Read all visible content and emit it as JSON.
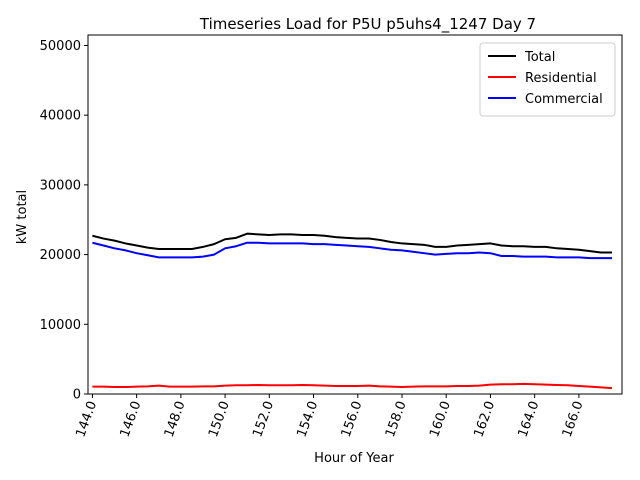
{
  "chart_data": {
    "type": "line",
    "title": "Timeseries Load for P5U p5uhs4_1247  Day 7",
    "xlabel": "Hour of Year",
    "ylabel": "kW total",
    "xlim": [
      143.8,
      167.95
    ],
    "ylim": [
      0,
      51500
    ],
    "xticks": [
      144.0,
      146.0,
      148.0,
      150.0,
      152.0,
      154.0,
      156.0,
      158.0,
      160.0,
      162.0,
      164.0,
      166.0
    ],
    "xtick_labels": [
      "144.0",
      "146.0",
      "148.0",
      "150.0",
      "152.0",
      "154.0",
      "156.0",
      "158.0",
      "160.0",
      "162.0",
      "164.0",
      "166.0"
    ],
    "yticks": [
      0,
      10000,
      20000,
      30000,
      40000,
      50000
    ],
    "ytick_labels": [
      "0",
      "10000",
      "20000",
      "30000",
      "40000",
      "50000"
    ],
    "legend_position": "top-right",
    "x": [
      144.0,
      144.5,
      145.0,
      145.5,
      146.0,
      146.5,
      147.0,
      147.5,
      148.0,
      148.5,
      149.0,
      149.5,
      150.0,
      150.5,
      151.0,
      151.5,
      152.0,
      152.5,
      153.0,
      153.5,
      154.0,
      154.5,
      155.0,
      155.5,
      156.0,
      156.5,
      157.0,
      157.5,
      158.0,
      158.5,
      159.0,
      159.5,
      160.0,
      160.5,
      161.0,
      161.5,
      162.0,
      162.5,
      163.0,
      163.5,
      164.0,
      164.5,
      165.0,
      165.5,
      166.0,
      166.5,
      167.0,
      167.5
    ],
    "series": [
      {
        "name": "Total",
        "color": "#000000",
        "values": [
          22700,
          22300,
          22000,
          21600,
          21300,
          21000,
          20800,
          20800,
          20800,
          20800,
          21100,
          21500,
          22200,
          22400,
          23000,
          22900,
          22800,
          22900,
          22900,
          22800,
          22800,
          22700,
          22500,
          22400,
          22300,
          22300,
          22100,
          21800,
          21600,
          21500,
          21400,
          21100,
          21100,
          21300,
          21400,
          21500,
          21600,
          21300,
          21200,
          21200,
          21100,
          21100,
          20900,
          20800,
          20700,
          20500,
          20300,
          20300
        ]
      },
      {
        "name": "Residential",
        "color": "#ff0000",
        "values": [
          1050,
          1050,
          1000,
          1000,
          1050,
          1100,
          1200,
          1050,
          1050,
          1050,
          1100,
          1100,
          1200,
          1250,
          1250,
          1300,
          1250,
          1250,
          1250,
          1300,
          1250,
          1200,
          1150,
          1150,
          1150,
          1200,
          1100,
          1050,
          1000,
          1050,
          1100,
          1100,
          1100,
          1150,
          1150,
          1200,
          1350,
          1400,
          1400,
          1450,
          1400,
          1350,
          1300,
          1250,
          1150,
          1050,
          950,
          850
        ]
      },
      {
        "name": "Commercial",
        "color": "#0000ff",
        "values": [
          21700,
          21300,
          20900,
          20600,
          20200,
          19900,
          19600,
          19600,
          19600,
          19600,
          19700,
          20000,
          20900,
          21200,
          21700,
          21700,
          21600,
          21600,
          21600,
          21600,
          21500,
          21500,
          21400,
          21300,
          21200,
          21100,
          20900,
          20700,
          20600,
          20400,
          20200,
          20000,
          20100,
          20200,
          20200,
          20300,
          20200,
          19800,
          19800,
          19700,
          19700,
          19700,
          19600,
          19600,
          19600,
          19500,
          19500,
          19500
        ]
      }
    ]
  }
}
